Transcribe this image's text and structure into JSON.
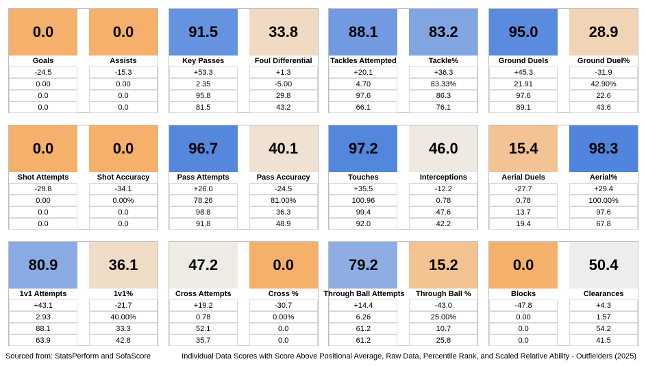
{
  "panels": [
    {
      "metrics": [
        {
          "score": "0.0",
          "label": "Goals",
          "rows": [
            "-24.5",
            "0.00",
            "0.0",
            "0.0"
          ]
        },
        {
          "score": "0.0",
          "label": "Assists",
          "rows": [
            "-15.3",
            "0.00",
            "0.0",
            "0.0"
          ]
        }
      ]
    },
    {
      "metrics": [
        {
          "score": "91.5",
          "label": "Key Passes",
          "rows": [
            "+53.3",
            "2.35",
            "95.8",
            "81.5"
          ]
        },
        {
          "score": "33.8",
          "label": "Foul Differential",
          "rows": [
            "+1.3",
            "-5.00",
            "29.8",
            "43.2"
          ]
        }
      ]
    },
    {
      "metrics": [
        {
          "score": "88.1",
          "label": "Tackles Attempted",
          "rows": [
            "+20.1",
            "4.70",
            "97.6",
            "66.1"
          ]
        },
        {
          "score": "83.2",
          "label": "Tackle%",
          "rows": [
            "+36.3",
            "83.33%",
            "86.3",
            "76.1"
          ]
        }
      ]
    },
    {
      "metrics": [
        {
          "score": "95.0",
          "label": "Ground Duels",
          "rows": [
            "+45.3",
            "21.91",
            "97.6",
            "89.1"
          ]
        },
        {
          "score": "28.9",
          "label": "Ground Duel%",
          "rows": [
            "-31.9",
            "42.90%",
            "22.6",
            "43.6"
          ]
        }
      ]
    },
    {
      "metrics": [
        {
          "score": "0.0",
          "label": "Shot Attempts",
          "rows": [
            "-29.8",
            "0.00",
            "0.0",
            "0.0"
          ]
        },
        {
          "score": "0.0",
          "label": "Shot Accuracy",
          "rows": [
            "-34.1",
            "0.00%",
            "0.0",
            "0.0"
          ]
        }
      ]
    },
    {
      "metrics": [
        {
          "score": "96.7",
          "label": "Pass Attempts",
          "rows": [
            "+26.0",
            "78.26",
            "98.8",
            "91.8"
          ]
        },
        {
          "score": "40.1",
          "label": "Pass Accuracy",
          "rows": [
            "-24.5",
            "81.00%",
            "36.3",
            "48.9"
          ]
        }
      ]
    },
    {
      "metrics": [
        {
          "score": "97.2",
          "label": "Touches",
          "rows": [
            "+35.5",
            "100.96",
            "99.4",
            "92.0"
          ]
        },
        {
          "score": "46.0",
          "label": "Interceptions",
          "rows": [
            "-12.2",
            "0.78",
            "47.6",
            "42.2"
          ]
        }
      ]
    },
    {
      "metrics": [
        {
          "score": "15.4",
          "label": "Aerial Duels",
          "rows": [
            "-27.7",
            "0.78",
            "13.7",
            "19.4"
          ]
        },
        {
          "score": "98.3",
          "label": "Aerial%",
          "rows": [
            "+29.4",
            "100.00%",
            "97.6",
            "67.8"
          ]
        }
      ]
    },
    {
      "metrics": [
        {
          "score": "80.9",
          "label": "1v1 Attempts",
          "rows": [
            "+43.1",
            "2.93",
            "88.1",
            "63.9"
          ]
        },
        {
          "score": "36.1",
          "label": "1v1%",
          "rows": [
            "-21.7",
            "40.00%",
            "33.3",
            "42.8"
          ]
        }
      ]
    },
    {
      "metrics": [
        {
          "score": "47.2",
          "label": "Cross Attempts",
          "rows": [
            "+19.2",
            "0.78",
            "52.1",
            "35.7"
          ]
        },
        {
          "score": "0.0",
          "label": "Cross %",
          "rows": [
            "-30.7",
            "0.00%",
            "0.0",
            "0.0"
          ]
        }
      ]
    },
    {
      "metrics": [
        {
          "score": "79.2",
          "label": "Through Ball Attempts",
          "rows": [
            "+14.4",
            "6.26",
            "61.2",
            "61.2"
          ]
        },
        {
          "score": "15.2",
          "label": "Through Ball %",
          "rows": [
            "-43.0",
            "25.00%",
            "10.7",
            "25.8"
          ]
        }
      ]
    },
    {
      "metrics": [
        {
          "score": "0.0",
          "label": "Blocks",
          "rows": [
            "-47.8",
            "0.00",
            "0.0",
            "0.0"
          ]
        },
        {
          "score": "50.4",
          "label": "Clearances",
          "rows": [
            "+4.3",
            "1.57",
            "54.2",
            "41.5"
          ]
        }
      ]
    }
  ],
  "footer": {
    "source": "Sourced from: StatsPerform and SofaScore",
    "title": "Individual Data Scores with Score Above Positional Average, Raw Data, Percentile Rank, and Scaled Relative Ability - Outfielders (2025)"
  }
}
